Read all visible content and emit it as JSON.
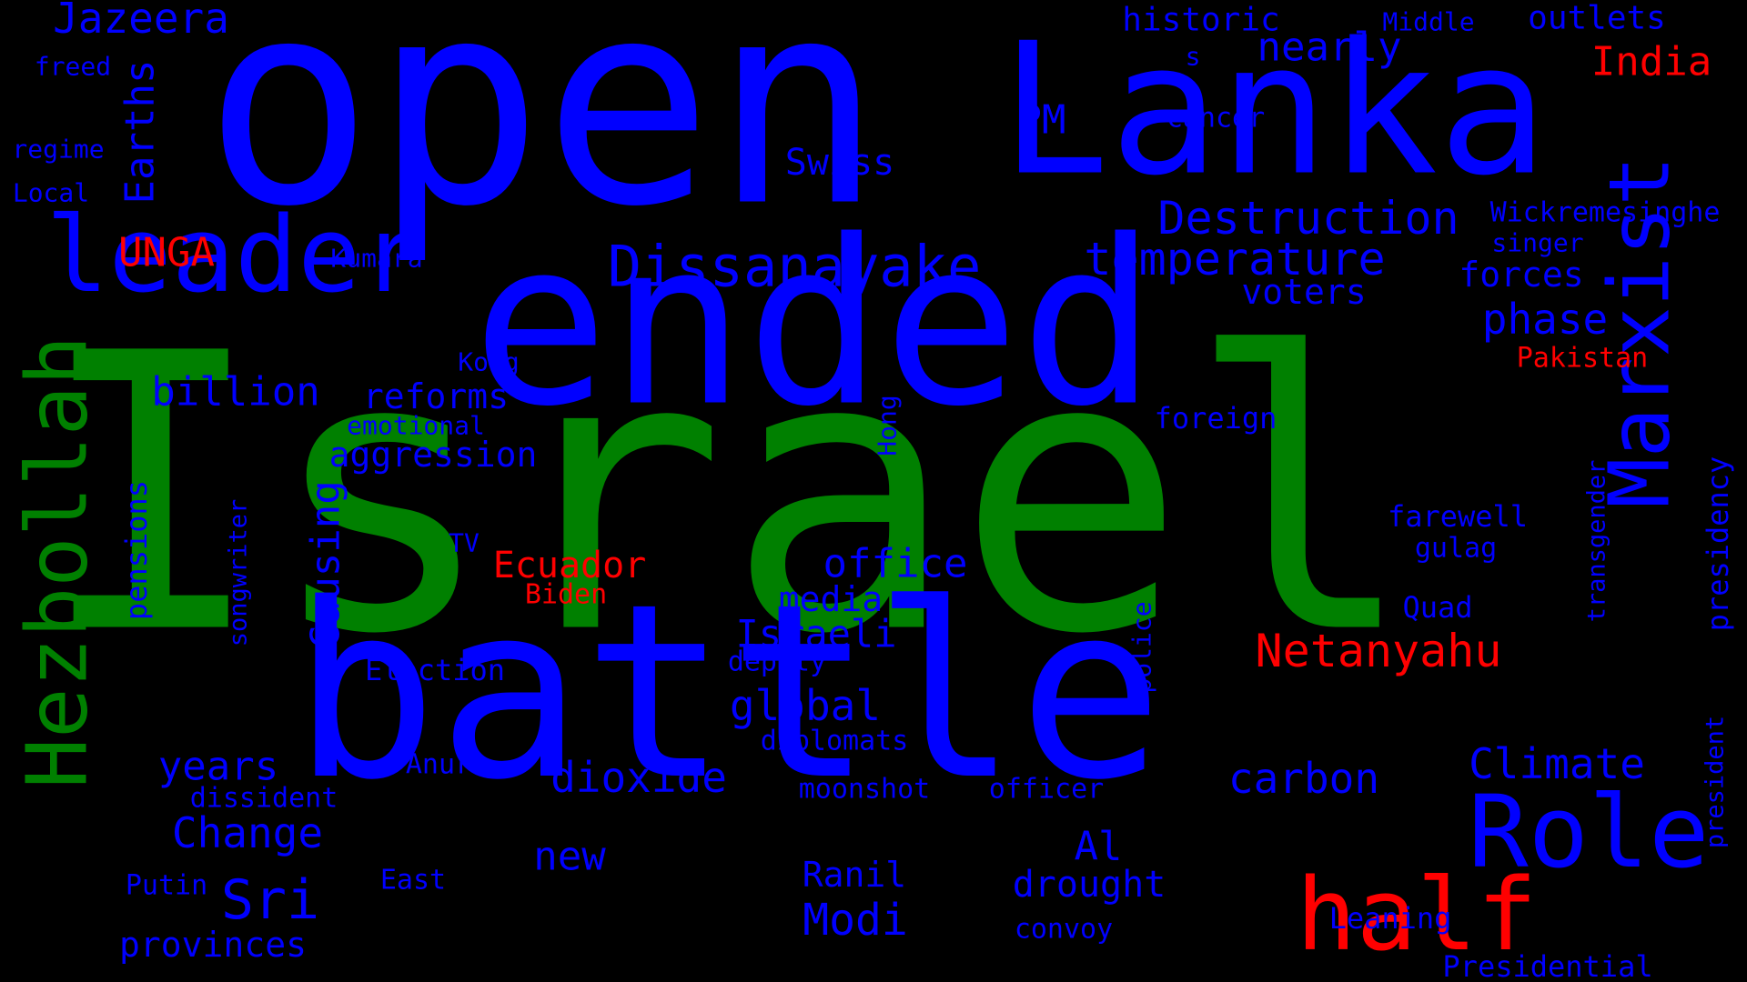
{
  "colors": {
    "background": "#000000",
    "blue": "#0000ff",
    "green": "#008000",
    "red": "#ff0000"
  },
  "words": [
    {
      "text": "Israel",
      "color": "green"
    },
    {
      "text": "open",
      "color": "blue"
    },
    {
      "text": "ended",
      "color": "blue"
    },
    {
      "text": "battle",
      "color": "blue"
    },
    {
      "text": "Lanka",
      "color": "blue"
    },
    {
      "text": "Hezbollah",
      "color": "green"
    },
    {
      "text": "leader",
      "color": "blue"
    },
    {
      "text": "Marxist",
      "color": "blue"
    },
    {
      "text": "half",
      "color": "red"
    },
    {
      "text": "Role",
      "color": "blue"
    },
    {
      "text": "Dissanayake",
      "color": "blue"
    },
    {
      "text": "Jazeera",
      "color": "blue"
    },
    {
      "text": "Destruction",
      "color": "blue"
    },
    {
      "text": "temperature",
      "color": "blue"
    },
    {
      "text": "Netanyahu",
      "color": "red"
    },
    {
      "text": "Earths",
      "color": "blue"
    },
    {
      "text": "Causing",
      "color": "blue"
    },
    {
      "text": "India",
      "color": "red"
    },
    {
      "text": "nearly",
      "color": "blue"
    },
    {
      "text": "UNGA",
      "color": "red"
    },
    {
      "text": "billion",
      "color": "blue"
    },
    {
      "text": "office",
      "color": "blue"
    },
    {
      "text": "global",
      "color": "blue"
    },
    {
      "text": "dioxide",
      "color": "blue"
    },
    {
      "text": "carbon",
      "color": "blue"
    },
    {
      "text": "Climate",
      "color": "blue"
    },
    {
      "text": "Change",
      "color": "blue"
    },
    {
      "text": "Sri",
      "color": "blue"
    },
    {
      "text": "Modi",
      "color": "blue"
    },
    {
      "text": "Israeli",
      "color": "blue"
    },
    {
      "text": "phase",
      "color": "blue"
    },
    {
      "text": "reforms",
      "color": "blue"
    },
    {
      "text": "aggression",
      "color": "blue"
    },
    {
      "text": "years",
      "color": "blue"
    },
    {
      "text": "new",
      "color": "blue"
    },
    {
      "text": "Al",
      "color": "blue"
    },
    {
      "text": "PM",
      "color": "blue"
    },
    {
      "text": "Swiss",
      "color": "blue"
    },
    {
      "text": "historic",
      "color": "blue"
    },
    {
      "text": "outlets",
      "color": "blue"
    },
    {
      "text": "forces",
      "color": "blue"
    },
    {
      "text": "voters",
      "color": "blue"
    },
    {
      "text": "presidency",
      "color": "blue"
    },
    {
      "text": "pensions",
      "color": "blue"
    },
    {
      "text": "Ecuador",
      "color": "red"
    },
    {
      "text": "Ranil",
      "color": "blue"
    },
    {
      "text": "drought",
      "color": "blue"
    },
    {
      "text": "media",
      "color": "blue"
    },
    {
      "text": "provinces",
      "color": "blue"
    },
    {
      "text": "Election",
      "color": "blue"
    },
    {
      "text": "Pakistan",
      "color": "red"
    },
    {
      "text": "Wickremesinghe",
      "color": "blue"
    },
    {
      "text": "foreign",
      "color": "blue"
    },
    {
      "text": "farewell",
      "color": "blue"
    },
    {
      "text": "gulag",
      "color": "blue"
    },
    {
      "text": "Quad",
      "color": "blue"
    },
    {
      "text": "Leaning",
      "color": "blue"
    },
    {
      "text": "Presidential",
      "color": "blue"
    },
    {
      "text": "president",
      "color": "blue"
    },
    {
      "text": "transgender",
      "color": "blue"
    },
    {
      "text": "police",
      "color": "blue"
    },
    {
      "text": "diplomats",
      "color": "blue"
    },
    {
      "text": "deputy",
      "color": "blue"
    },
    {
      "text": "moonshot",
      "color": "blue"
    },
    {
      "text": "officer",
      "color": "blue"
    },
    {
      "text": "convoy",
      "color": "blue"
    },
    {
      "text": "Anura",
      "color": "blue"
    },
    {
      "text": "dissident",
      "color": "blue"
    },
    {
      "text": "Putin",
      "color": "blue"
    },
    {
      "text": "East",
      "color": "blue"
    },
    {
      "text": "emotional",
      "color": "blue"
    },
    {
      "text": "Kong",
      "color": "blue"
    },
    {
      "text": "Hong",
      "color": "blue"
    },
    {
      "text": "TV",
      "color": "blue"
    },
    {
      "text": "Biden",
      "color": "red"
    },
    {
      "text": "songwriter",
      "color": "blue"
    },
    {
      "text": "Kumara",
      "color": "blue"
    },
    {
      "text": "freed",
      "color": "blue"
    },
    {
      "text": "regime",
      "color": "blue"
    },
    {
      "text": "Local",
      "color": "blue"
    },
    {
      "text": "Middle",
      "color": "blue"
    },
    {
      "text": "cancer",
      "color": "blue"
    },
    {
      "text": "s",
      "color": "blue"
    },
    {
      "text": "singer",
      "color": "blue"
    }
  ]
}
